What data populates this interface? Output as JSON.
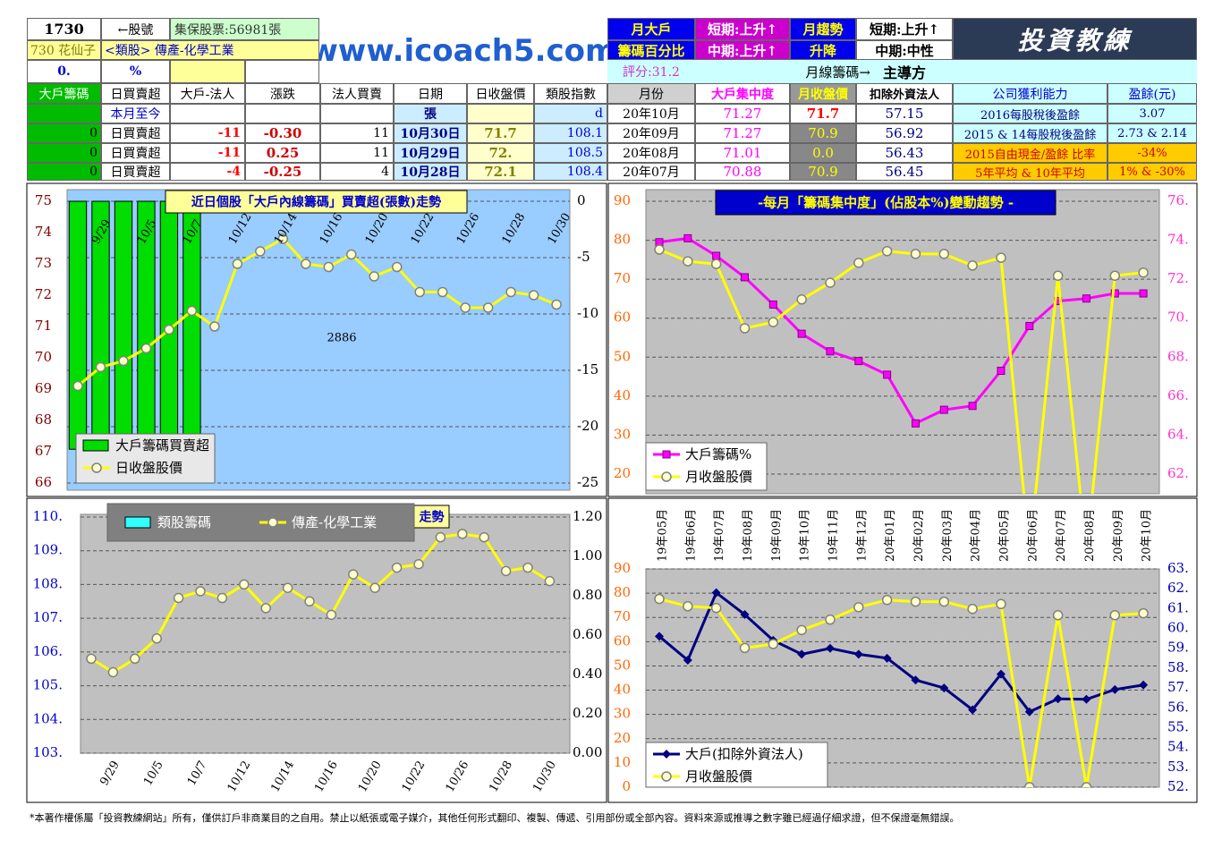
{
  "header": {
    "stock_code": "1730",
    "code_label": "←股號",
    "shares": "集保股票:56981張",
    "name": "730 花仙子",
    "sector": "<類股> 傳產-化學工業",
    "r3a": "0.",
    "r3b": "%",
    "site": "www.icoach5.com",
    "big_holder": "月大戶",
    "chip_pct": "籌碼百分比",
    "short1": "短期:上升↑",
    "mid1": "中期:上升↑",
    "trend": "月趨勢",
    "updown": "升降",
    "short2": "短期:上升↑",
    "mid2": "中期:中性",
    "logo": "投資教練",
    "score": "評分:31.2",
    "monthly_chip": "月線籌碼→",
    "leader": "主導方"
  },
  "table": {
    "columns": [
      "大戶籌碼",
      "日買賣超",
      "大戶-法人",
      "漲跌",
      "法人買賣",
      "日期",
      "日收盤價",
      "類股指數",
      "月份",
      "大戶集中度",
      "月收盤價",
      "扣除外資法人",
      "公司獲利能力",
      "盈餘(元)"
    ],
    "rows": [
      [
        "",
        "本月至今",
        "",
        "",
        "",
        "張",
        "",
        "d",
        "20年10月",
        "71.27",
        "71.7",
        "57.15",
        "2016每股稅後盈餘",
        "3.07"
      ],
      [
        "0",
        "日買賣超",
        "-11",
        "-0.30",
        "11",
        "10月30日",
        "71.7",
        "108.1",
        "20年09月",
        "71.27",
        "70.9",
        "56.92",
        "2015 & 14每股稅後盈餘",
        "2.73 & 2.14"
      ],
      [
        "0",
        "日買賣超",
        "-11",
        "0.25",
        "11",
        "10月29日",
        "72.",
        "108.5",
        "20年08月",
        "71.01",
        "0.0",
        "56.43",
        "2015自由現金/盈餘 比率",
        "-34%"
      ],
      [
        "0",
        "日買賣超",
        "-4",
        "-0.25",
        "4",
        "10月28日",
        "72.1",
        "108.4",
        "20年07月",
        "70.88",
        "70.9",
        "56.45",
        "5年平均 & 10年平均",
        "1% & -30%"
      ]
    ]
  },
  "chart_data": [
    {
      "type": "combo",
      "title": "近日個股「大戶內線籌碼」買賣超(張數)走勢",
      "annotation": "2886",
      "categories": [
        null,
        "9/29",
        null,
        "10/5",
        null,
        "10/7",
        null,
        "10/12",
        null,
        "10/14",
        null,
        "10/16",
        null,
        "10/20",
        null,
        "10/22",
        null,
        "10/26",
        null,
        "10/28",
        null,
        "10/30"
      ],
      "series": [
        {
          "name": "大戶籌碼買賣超",
          "kind": "bar",
          "axis": "y2",
          "color": "#00dd00",
          "values": [
            -22,
            -22,
            -22,
            -22,
            -22,
            -22,
            null,
            null,
            null,
            null,
            null,
            null,
            null,
            null,
            null,
            null,
            null,
            null,
            null,
            null,
            null,
            null
          ]
        },
        {
          "name": "日收盤股價",
          "kind": "line",
          "marker": "circle",
          "color": "#ffff00",
          "values": [
            69.1,
            69.7,
            69.9,
            70.3,
            70.9,
            71.5,
            71.0,
            73.0,
            73.4,
            73.8,
            73.0,
            72.9,
            73.3,
            72.6,
            72.9,
            72.1,
            72.1,
            71.6,
            71.6,
            72.1,
            72.0,
            71.7
          ]
        }
      ],
      "ylim": [
        66,
        75
      ],
      "yticks": [
        66,
        67,
        68,
        69,
        70,
        71,
        72,
        73,
        74,
        75
      ],
      "y2lim": [
        -25,
        0
      ],
      "y2ticks": [
        0,
        -5,
        -10,
        -15,
        -20,
        -25
      ],
      "grid": "y2"
    },
    {
      "type": "combo",
      "title": "-每月「籌碼集中度」(佔股本%)變動趨勢 -",
      "series": [
        {
          "name": "大戶籌碼%",
          "kind": "line",
          "marker": "square",
          "axis": "y2",
          "color": "#ff00ff",
          "values": [
            73.9,
            74.1,
            73.2,
            72.1,
            70.7,
            69.2,
            68.3,
            67.8,
            67.1,
            64.6,
            65.3,
            65.5,
            67.3,
            69.6,
            70.88,
            71.01,
            71.27,
            71.27
          ]
        },
        {
          "name": "月收盤股價",
          "kind": "line",
          "marker": "circle",
          "color": "#ffff00",
          "values": [
            77.6,
            74.6,
            73.9,
            57.4,
            59.0,
            64.8,
            69.1,
            74.2,
            77.2,
            76.5,
            76.5,
            73.5,
            75.5,
            0,
            70.9,
            0,
            70.9,
            71.7
          ]
        }
      ],
      "ylim": [
        20,
        90
      ],
      "yticks": [
        20,
        30,
        40,
        50,
        60,
        70,
        80,
        90
      ],
      "y2lim": [
        62,
        76
      ],
      "y2ticks": [
        {
          "value": 62,
          "label": "62."
        },
        {
          "value": 64,
          "label": "64."
        },
        {
          "value": 66,
          "label": "66."
        },
        {
          "value": 68,
          "label": "68."
        },
        {
          "value": 70,
          "label": "70."
        },
        {
          "value": 72,
          "label": "72."
        },
        {
          "value": 74,
          "label": "74."
        },
        {
          "value": 76,
          "label": "76."
        }
      ],
      "grid": "y"
    },
    {
      "type": "combo",
      "title": "走勢",
      "categories": [
        null,
        "9/29",
        null,
        "10/5",
        null,
        "10/7",
        null,
        "10/12",
        null,
        "10/14",
        null,
        "10/16",
        null,
        "10/20",
        null,
        "10/22",
        null,
        "10/26",
        null,
        "10/28",
        null,
        "10/30"
      ],
      "series": [
        {
          "name": "類股籌碼",
          "kind": "bar",
          "axis": "y2",
          "color": "#33ffff",
          "values": [
            null,
            null,
            null,
            null,
            null,
            null,
            null,
            null,
            null,
            null,
            null,
            null,
            null,
            null,
            null,
            null,
            null,
            null,
            null,
            null,
            null,
            null
          ]
        },
        {
          "name": "傳產-化學工業",
          "kind": "line",
          "marker": "circle",
          "color": "#ffff00",
          "values": [
            105.8,
            105.4,
            105.8,
            106.4,
            107.6,
            107.8,
            107.6,
            108.0,
            107.3,
            107.9,
            107.5,
            107.1,
            108.3,
            107.9,
            108.5,
            108.6,
            109.4,
            109.5,
            109.4,
            108.4,
            108.5,
            108.1
          ]
        }
      ],
      "ylim": [
        103,
        110
      ],
      "yticks": [
        {
          "value": 103,
          "label": "103."
        },
        {
          "value": 104,
          "label": "104."
        },
        {
          "value": 105,
          "label": "105."
        },
        {
          "value": 106,
          "label": "106."
        },
        {
          "value": 107,
          "label": "107."
        },
        {
          "value": 108,
          "label": "108."
        },
        {
          "value": 109,
          "label": "109."
        },
        {
          "value": 110,
          "label": "110."
        }
      ],
      "y2lim": [
        0,
        1.2
      ],
      "y2ticks": [
        {
          "value": 0,
          "label": "0.00"
        },
        {
          "value": 0.2,
          "label": "0.20"
        },
        {
          "value": 0.4,
          "label": "0.40"
        },
        {
          "value": 0.6,
          "label": "0.60"
        },
        {
          "value": 0.8,
          "label": "0.80"
        },
        {
          "value": 1.0,
          "label": "1.00"
        },
        {
          "value": 1.2,
          "label": "1.20"
        }
      ],
      "grid": "y"
    },
    {
      "type": "combo",
      "categories": [
        "19年05月",
        "19年06月",
        "19年07月",
        "19年08月",
        "19年09月",
        "19年10月",
        "19年11月",
        "19年12月",
        "20年01月",
        "20年02月",
        "20年03月",
        "20年04月",
        "20年05月",
        "20年06月",
        "20年07月",
        "20年08月",
        "20年09月",
        "20年10月"
      ],
      "series": [
        {
          "name": "大戶(扣除外資法人)",
          "kind": "line",
          "marker": "diamond",
          "axis": "y2",
          "color": "#000080",
          "values": [
            59.6,
            58.4,
            61.8,
            60.7,
            59.4,
            58.7,
            59.0,
            58.7,
            58.5,
            57.4,
            57.0,
            55.9,
            57.7,
            55.8,
            56.45,
            56.43,
            56.92,
            57.15
          ]
        },
        {
          "name": "月收盤股價",
          "kind": "line",
          "marker": "circle",
          "color": "#ffff00",
          "values": [
            77.6,
            74.6,
            73.9,
            57.4,
            59.0,
            64.8,
            69.1,
            74.2,
            77.2,
            76.5,
            76.5,
            73.5,
            75.5,
            0,
            70.9,
            0,
            70.9,
            71.7
          ]
        }
      ],
      "ylim": [
        0,
        90
      ],
      "yticks": [
        0,
        10,
        20,
        30,
        40,
        50,
        60,
        70,
        80,
        90
      ],
      "y2lim": [
        52,
        63
      ],
      "y2ticks": [
        {
          "value": 52,
          "label": "52."
        },
        {
          "value": 53,
          "label": "53."
        },
        {
          "value": 54,
          "label": "54."
        },
        {
          "value": 55,
          "label": "55."
        },
        {
          "value": 56,
          "label": "56."
        },
        {
          "value": 57,
          "label": "57."
        },
        {
          "value": 58,
          "label": "58."
        },
        {
          "value": 59,
          "label": "59."
        },
        {
          "value": 60,
          "label": "60."
        },
        {
          "value": 61,
          "label": "61."
        },
        {
          "value": 62,
          "label": "62."
        },
        {
          "value": 63,
          "label": "63."
        }
      ],
      "grid": "y"
    }
  ],
  "footer": "*本著作權係屬「投資教練網站」所有，僅供訂戶非商業目的之自用。禁止以紙張或電子媒介，其他任何形式翻印、複製、傳遞、引用部份或全部內容。資料來源或推導之數字雖已經過仔細求證，但不保證毫無錯誤。"
}
